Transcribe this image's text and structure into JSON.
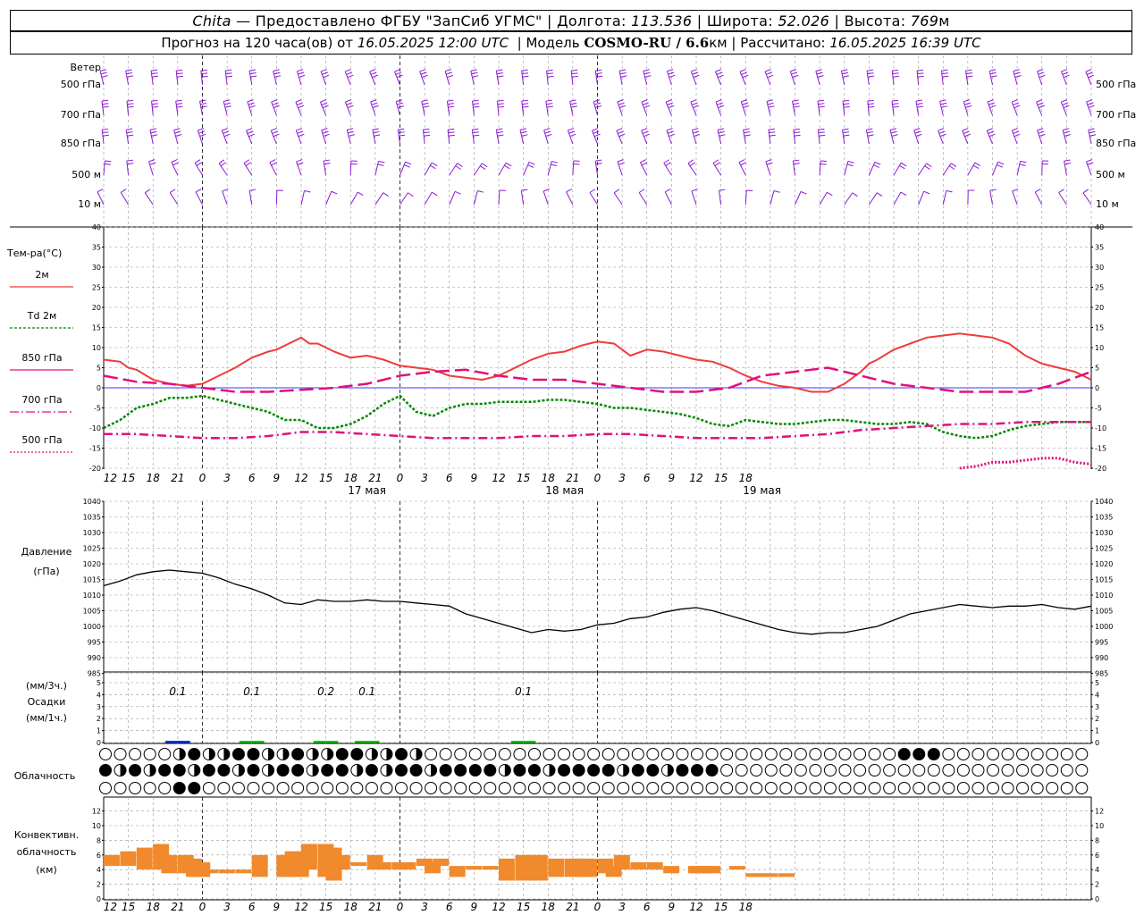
{
  "header": {
    "station": "Chita",
    "provider": "Предоставлено ФГБУ \"ЗапСиб УГМС\"",
    "lon_label": "Долгота:",
    "lon": "113.536",
    "lat_label": "Широта:",
    "lat": "52.026",
    "alt_label": "Высота:",
    "alt": "769",
    "alt_unit": "м",
    "forecast_label": "Прогноз на 120 часа(ов) от",
    "forecast_start": "16.05.2025 12:00 UTC",
    "model_label": "Модель",
    "model": "COSMO-RU / 6.6",
    "model_unit": "км",
    "calc_label": "Рассчитано:",
    "calc_time": "16.05.2025 16:39 UTC"
  },
  "colors": {
    "wind": "#8b1ad6",
    "t2m": "#ee3b3b",
    "td2m": "#008a00",
    "t850": "#e0107a",
    "pressure": "#000000",
    "precip_green": "#00cc00",
    "precip_blue": "#0033ee",
    "convective": "#f08a2c",
    "zero_line": "#3a3aff",
    "grid": "#999999"
  },
  "wind_panel": {
    "title": "Ветер",
    "levels": [
      "500 гПа",
      "700 гПа",
      "850 гПа",
      "500 м",
      "10  м"
    ]
  },
  "temp_panel": {
    "title": "Тем-ра(°C)",
    "legend": [
      {
        "label": "2м",
        "key": "t2m",
        "style": "solid"
      },
      {
        "label": "Td  2м",
        "key": "td2m",
        "style": "dotted"
      },
      {
        "label": "850 гПа",
        "key": "t850",
        "style": "solid-thin"
      },
      {
        "label": "700 гПа",
        "key": "t700",
        "style": "dashdot"
      },
      {
        "label": "500 гПа",
        "key": "t500",
        "style": "dotted"
      }
    ],
    "yticks": [
      40,
      35,
      30,
      25,
      20,
      15,
      10,
      5,
      0,
      -5,
      -10,
      -15,
      -20
    ]
  },
  "pressure_panel": {
    "title": "Давление",
    "unit": "(гПа)",
    "yticks": [
      1040,
      1035,
      1030,
      1025,
      1020,
      1015,
      1010,
      1005,
      1000,
      995,
      990,
      985
    ]
  },
  "precip_panel": {
    "unit1": "(мм/3ч.)",
    "title": "Осадки",
    "unit2": "(мм/1ч.)",
    "yticks": [
      5,
      4,
      3,
      2,
      1,
      0
    ],
    "labels": [
      {
        "hour": 9,
        "text": "0.1"
      },
      {
        "hour": 18,
        "text": "0.1"
      },
      {
        "hour": 27,
        "text": "0.2"
      },
      {
        "hour": 32,
        "text": "0.1"
      },
      {
        "hour": 51,
        "text": "0.1"
      }
    ]
  },
  "cloud_panel": {
    "title": "Облачность"
  },
  "conv_panel": {
    "title1": "Конвективн.",
    "title2": "облачность",
    "unit": "(км)",
    "yticks": [
      12,
      10,
      8,
      6,
      4,
      2,
      0
    ]
  },
  "x_axis": {
    "hour_labels": [
      "12",
      "15",
      "18",
      "21",
      "0",
      "3",
      "6",
      "9",
      "12",
      "15",
      "18",
      "21",
      "0",
      "3",
      "6",
      "9",
      "12",
      "15",
      "18",
      "21",
      "0",
      "3",
      "6",
      "9",
      "12",
      "15",
      "18"
    ],
    "day_labels": [
      {
        "hour": 32,
        "text": "17 мая"
      },
      {
        "hour": 56,
        "text": "18 мая"
      },
      {
        "hour": 80,
        "text": "19 мая"
      }
    ],
    "midnights": [
      12,
      36,
      60
    ]
  },
  "chart_data": [
    {
      "type": "line",
      "title": "Тем-ра(°C)",
      "x_unit": "hours from 16.05.2025 12:00 UTC",
      "ylim": [
        -20,
        40
      ],
      "series": [
        {
          "name": "2м",
          "x": [
            0,
            2,
            3,
            4,
            6,
            8,
            10,
            12,
            14,
            16,
            18,
            20,
            21,
            22,
            24,
            25,
            26,
            28,
            30,
            32,
            34,
            36,
            38,
            40,
            42,
            44,
            46,
            48,
            50,
            52,
            54,
            56,
            58,
            60,
            62,
            64,
            66,
            68,
            70,
            72,
            74,
            76,
            78,
            80,
            82,
            84,
            86,
            88,
            90,
            92,
            93,
            94,
            96,
            98,
            100,
            102,
            104,
            106,
            108,
            110,
            112,
            114,
            116,
            118,
            120
          ],
          "values": [
            7,
            6.5,
            5,
            4.5,
            2,
            1,
            0.5,
            1,
            3,
            5,
            7.5,
            9,
            9.5,
            10.5,
            12.5,
            11,
            11,
            9,
            7.5,
            8,
            7,
            5.5,
            5,
            4.5,
            3,
            2.5,
            2,
            3,
            5,
            7,
            8.5,
            9,
            10.5,
            11.5,
            11,
            8,
            9.5,
            9,
            8,
            7,
            6.5,
            5,
            3,
            1.5,
            0.5,
            0,
            -1,
            -1,
            1,
            4,
            6,
            7,
            9.5,
            11,
            12.5,
            13,
            13.5,
            13,
            12.5,
            11,
            8,
            6,
            5,
            4,
            2
          ]
        },
        {
          "name": "Td  2м",
          "x": [
            0,
            2,
            4,
            6,
            8,
            10,
            12,
            14,
            16,
            18,
            20,
            22,
            24,
            26,
            28,
            30,
            32,
            34,
            36,
            38,
            40,
            42,
            44,
            46,
            48,
            50,
            52,
            54,
            56,
            58,
            60,
            62,
            64,
            66,
            68,
            70,
            72,
            74,
            76,
            78,
            80,
            82,
            84,
            86,
            88,
            90,
            92,
            94,
            96,
            98,
            100,
            102,
            104,
            106,
            108,
            110,
            112,
            114,
            116,
            118,
            120
          ],
          "values": [
            -10,
            -8,
            -5,
            -4,
            -2.5,
            -2.5,
            -2,
            -3,
            -4,
            -5,
            -6,
            -8,
            -8,
            -10,
            -10,
            -9,
            -7,
            -4,
            -2,
            -6,
            -7,
            -5,
            -4,
            -4,
            -3.5,
            -3.5,
            -3.5,
            -3,
            -3,
            -3.5,
            -4,
            -5,
            -5,
            -5.5,
            -6,
            -6.5,
            -7.5,
            -9,
            -9.5,
            -8,
            -8.5,
            -9,
            -9,
            -8.5,
            -8,
            -8,
            -8.5,
            -9,
            -9,
            -8.5,
            -9,
            -11,
            -12,
            -12.5,
            -12,
            -10.5,
            -9.5,
            -9,
            -8.5,
            -8.5,
            -8.5
          ]
        },
        {
          "name": "850 гПа",
          "x": [
            0,
            4,
            8,
            12,
            16,
            20,
            24,
            28,
            32,
            36,
            40,
            44,
            48,
            52,
            56,
            60,
            64,
            68,
            72,
            76,
            80,
            84,
            88,
            92,
            96,
            100,
            104,
            108,
            112,
            116,
            120
          ],
          "values": [
            3,
            1.5,
            1,
            0,
            -1,
            -1,
            -0.5,
            0,
            1,
            3,
            4,
            4.5,
            3,
            2,
            2,
            1,
            0,
            -1,
            -1,
            0,
            3,
            4,
            5,
            3,
            1,
            0,
            -1,
            -1,
            -1,
            1,
            4
          ]
        },
        {
          "name": "700 гПа",
          "x": [
            0,
            4,
            8,
            12,
            16,
            20,
            24,
            28,
            32,
            36,
            40,
            44,
            48,
            52,
            56,
            60,
            64,
            68,
            72,
            76,
            80,
            84,
            88,
            92,
            96,
            100,
            104,
            108,
            112,
            116,
            120
          ],
          "values": [
            -11.5,
            -11.5,
            -12,
            -12.5,
            -12.5,
            -12,
            -11,
            -11,
            -11.5,
            -12,
            -12.5,
            -12.5,
            -12.5,
            -12,
            -12,
            -11.5,
            -11.5,
            -12,
            -12.5,
            -12.5,
            -12.5,
            -12,
            -11.5,
            -10.5,
            -10,
            -9.5,
            -9,
            -9,
            -8.5,
            -8.5,
            -8.5
          ]
        },
        {
          "name": "500 гПа",
          "x": [
            104,
            106,
            108,
            110,
            112,
            114,
            116,
            118,
            120
          ],
          "values": [
            -20,
            -19.5,
            -18.5,
            -18.5,
            -18,
            -17.5,
            -17.5,
            -18.5,
            -19
          ]
        }
      ]
    },
    {
      "type": "line",
      "title": "Давление",
      "ylabel": "(гПа)",
      "x_unit": "hours from 16.05.2025 12:00 UTC",
      "ylim": [
        985,
        1040
      ],
      "series": [
        {
          "name": "Давление",
          "x": [
            0,
            2,
            4,
            6,
            8,
            10,
            12,
            14,
            16,
            18,
            20,
            22,
            24,
            26,
            28,
            30,
            32,
            34,
            36,
            38,
            40,
            42,
            44,
            46,
            48,
            50,
            52,
            54,
            56,
            58,
            60,
            62,
            64,
            66,
            68,
            70,
            72,
            74,
            76,
            78,
            80,
            82,
            84,
            86,
            88,
            90,
            92,
            94,
            96,
            98,
            100,
            102,
            104,
            106,
            108,
            110,
            112,
            114,
            116,
            118,
            120
          ],
          "values": [
            1013,
            1014.5,
            1016.5,
            1017.5,
            1018,
            1017.5,
            1017,
            1015.5,
            1013.5,
            1012,
            1010,
            1007.5,
            1007,
            1008.5,
            1008,
            1008,
            1008.5,
            1008,
            1008,
            1007.5,
            1007,
            1006.5,
            1004,
            1002.5,
            1001,
            999.5,
            998,
            999,
            998.5,
            999,
            1000.5,
            1001,
            1002.5,
            1003,
            1004.5,
            1005.5,
            1006,
            1005,
            1003.5,
            1002,
            1000.5,
            999,
            998,
            997.5,
            998,
            998,
            999,
            1000,
            1002,
            1004,
            1005,
            1006,
            1007,
            1006.5,
            1006,
            1006.5,
            1006.5,
            1007,
            1006,
            1005.5,
            1006.5
          ]
        }
      ]
    },
    {
      "type": "bar",
      "title": "Осадки",
      "ylabel": "(мм/3ч.)",
      "x_unit": "hours from 16.05.2025 12:00 UTC",
      "ylim": [
        0,
        5
      ],
      "series": [
        {
          "name": "(мм/3ч.)",
          "x": [
            9,
            18,
            27,
            32,
            51
          ],
          "values": [
            0.1,
            0.1,
            0.2,
            0.1,
            0.1
          ]
        }
      ]
    },
    {
      "type": "bar",
      "title": "Конвективн. облачность",
      "ylabel": "(км)",
      "x_unit": "hours from 16.05.2025 12:00 UTC",
      "ylim": [
        0,
        13
      ],
      "series": [
        {
          "name": "bottom_km",
          "x": [
            0,
            2,
            4,
            6,
            7,
            9,
            10,
            11,
            12,
            14,
            16,
            18,
            21,
            22,
            23,
            24,
            26,
            27,
            28,
            30,
            32,
            33,
            35,
            36,
            38,
            39,
            40,
            42,
            44,
            46,
            48,
            50,
            51,
            52,
            54,
            56,
            57,
            58,
            60,
            61,
            62,
            64,
            66,
            68,
            71,
            72,
            73,
            76,
            78,
            79,
            80,
            82
          ],
          "values": [
            4.5,
            4.5,
            4,
            4,
            3.5,
            3.5,
            3,
            3,
            3.5,
            3.5,
            3.5,
            3,
            3,
            3,
            3,
            4,
            3,
            2.5,
            4,
            4.5,
            4,
            4,
            4,
            4,
            4.5,
            3.5,
            4.5,
            3,
            4,
            4,
            2.5,
            2.5,
            2.5,
            2.5,
            3,
            3,
            3,
            3,
            3.5,
            3,
            4,
            4,
            4,
            3.5,
            3.5,
            3.5,
            3.5,
            4,
            3,
            3,
            3,
            3
          ]
        },
        {
          "name": "top_km",
          "x": [
            0,
            2,
            4,
            6,
            7,
            9,
            10,
            11,
            12,
            14,
            16,
            18,
            21,
            22,
            23,
            24,
            26,
            27,
            28,
            30,
            32,
            33,
            35,
            36,
            38,
            39,
            40,
            42,
            44,
            46,
            48,
            50,
            51,
            52,
            54,
            56,
            57,
            58,
            60,
            61,
            62,
            64,
            66,
            68,
            71,
            72,
            73,
            76,
            78,
            79,
            80,
            82
          ],
          "values": [
            6,
            6.5,
            7,
            7.5,
            6,
            6,
            5.5,
            5,
            4,
            4,
            4,
            6,
            6,
            6.5,
            6.5,
            7.5,
            7.5,
            7,
            6,
            5,
            6,
            5,
            5,
            5,
            5.5,
            5,
            5.5,
            4.5,
            4.5,
            4.5,
            5.5,
            6,
            6,
            6,
            5.5,
            5.5,
            5.5,
            5.5,
            5.5,
            4.5,
            6,
            5,
            5,
            4.5,
            4.5,
            4.5,
            4.5,
            4.5,
            3.5,
            3.5,
            3.5,
            3.5
          ]
        }
      ]
    }
  ]
}
